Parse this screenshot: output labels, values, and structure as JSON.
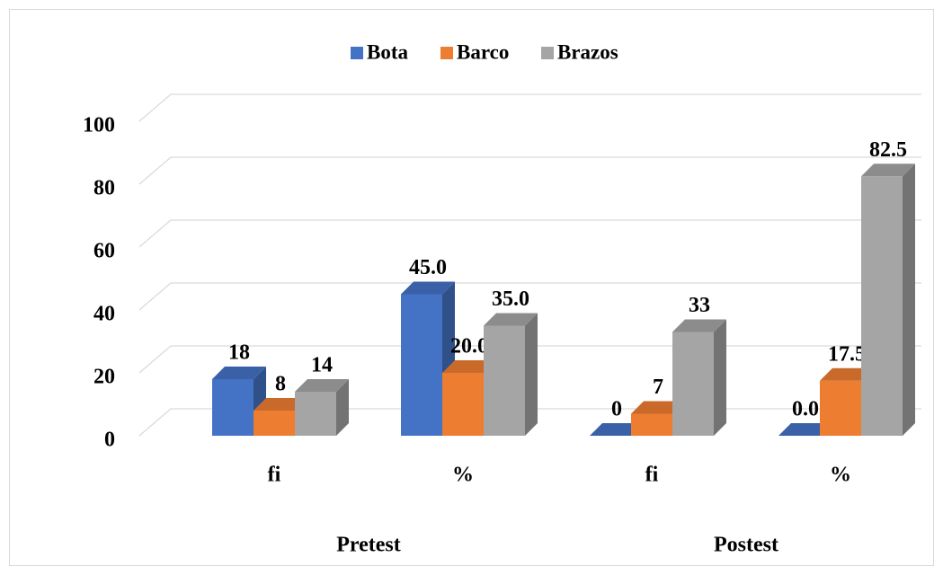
{
  "chart_data": {
    "type": "bar3d",
    "categories": [
      "fi",
      "%",
      "fi",
      "%"
    ],
    "group_labels": [
      "Pretest",
      "Postest"
    ],
    "series": [
      {
        "name": "Bota",
        "color": "#4472c4",
        "values": [
          18,
          45,
          0,
          0
        ],
        "value_labels": [
          "18",
          "45.0",
          "0",
          "0.0"
        ]
      },
      {
        "name": "Barco",
        "color": "#ed7d31",
        "values": [
          8,
          20,
          7,
          17.5
        ],
        "value_labels": [
          "8",
          "20.0",
          "7",
          "17.5"
        ]
      },
      {
        "name": "Brazos",
        "color": "#a5a5a5",
        "values": [
          14,
          35,
          33,
          82.5
        ],
        "value_labels": [
          "14",
          "35.0",
          "33",
          "82.5"
        ]
      }
    ],
    "ylim": [
      0,
      100
    ],
    "yticks": [
      0,
      20,
      40,
      60,
      80,
      100
    ],
    "grid": true,
    "legend": "top"
  }
}
